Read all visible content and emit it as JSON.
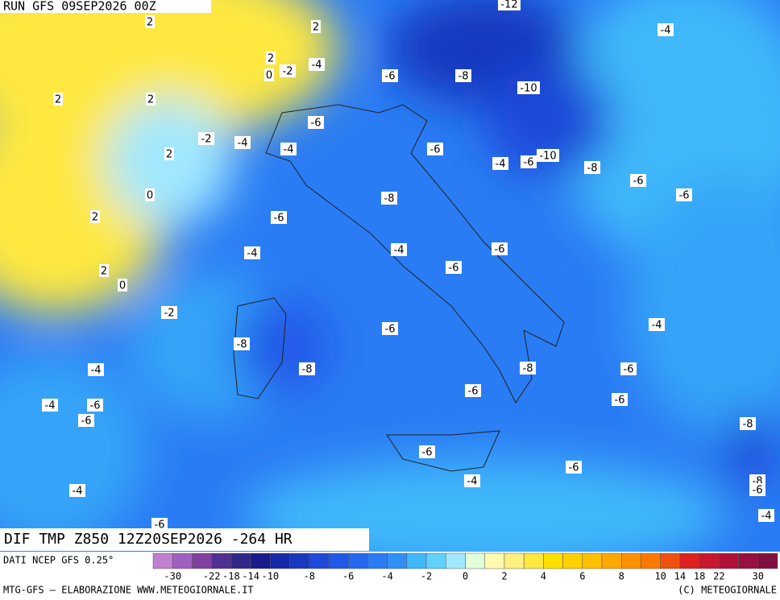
{
  "header": {
    "run": "RUN GFS 09SEP2026 00Z"
  },
  "map": {
    "title": "DIF TMP Z850 12Z20SEP2026 -264 HR",
    "source": "DATI NCEP GFS 0.25°",
    "contour_labels": [
      -12,
      -4,
      2,
      2,
      2,
      -4,
      0,
      -2,
      -6,
      -8,
      -10,
      2,
      2,
      -6,
      -2,
      -4,
      -4,
      2,
      -6,
      -4,
      -6,
      -10,
      -8,
      -6,
      0,
      -8,
      -6,
      2,
      -6,
      -4,
      -4,
      -6,
      -6,
      2,
      0,
      -2,
      -6,
      -4,
      -8,
      -8,
      -4,
      -8,
      -6,
      -6,
      -6,
      -4,
      -6,
      -6,
      -8,
      -6,
      -6,
      -4,
      -8,
      -6,
      -4,
      -4,
      -6
    ]
  },
  "colorbar": {
    "levels": [
      -34,
      -30,
      -26,
      -22,
      -18,
      -14,
      -10,
      -9,
      -8,
      -7,
      -6,
      -5,
      -4,
      -3,
      -2,
      -1,
      0,
      1,
      2,
      3,
      4,
      5,
      6,
      7,
      8,
      9,
      10,
      14,
      18,
      22,
      26,
      30,
      34
    ],
    "colors": [
      "#c080d0",
      "#a060c0",
      "#8040a0",
      "#503090",
      "#302888",
      "#1a1a8c",
      "#1428a8",
      "#1838c0",
      "#1e48d8",
      "#2058e8",
      "#2468f0",
      "#2a7cf4",
      "#2e90f6",
      "#40b8fa",
      "#60d0fc",
      "#a0e8ff",
      "#e0ffd8",
      "#fffcb0",
      "#fff080",
      "#ffe840",
      "#ffe000",
      "#ffd000",
      "#ffc000",
      "#ffa800",
      "#ff9000",
      "#ff7800",
      "#f05010",
      "#e02020",
      "#c81830",
      "#b01038",
      "#981040",
      "#801040"
    ],
    "ticks": [
      -30,
      -22,
      -18,
      -14,
      -10,
      -8,
      -6,
      -4,
      -2,
      0,
      2,
      4,
      6,
      8,
      10,
      14,
      18,
      22,
      30
    ]
  },
  "footer": {
    "left": "MTG-GFS — ELABORAZIONE WWW.METEOGIORNALE.IT",
    "right": "(C) METEOGIORNALE"
  }
}
